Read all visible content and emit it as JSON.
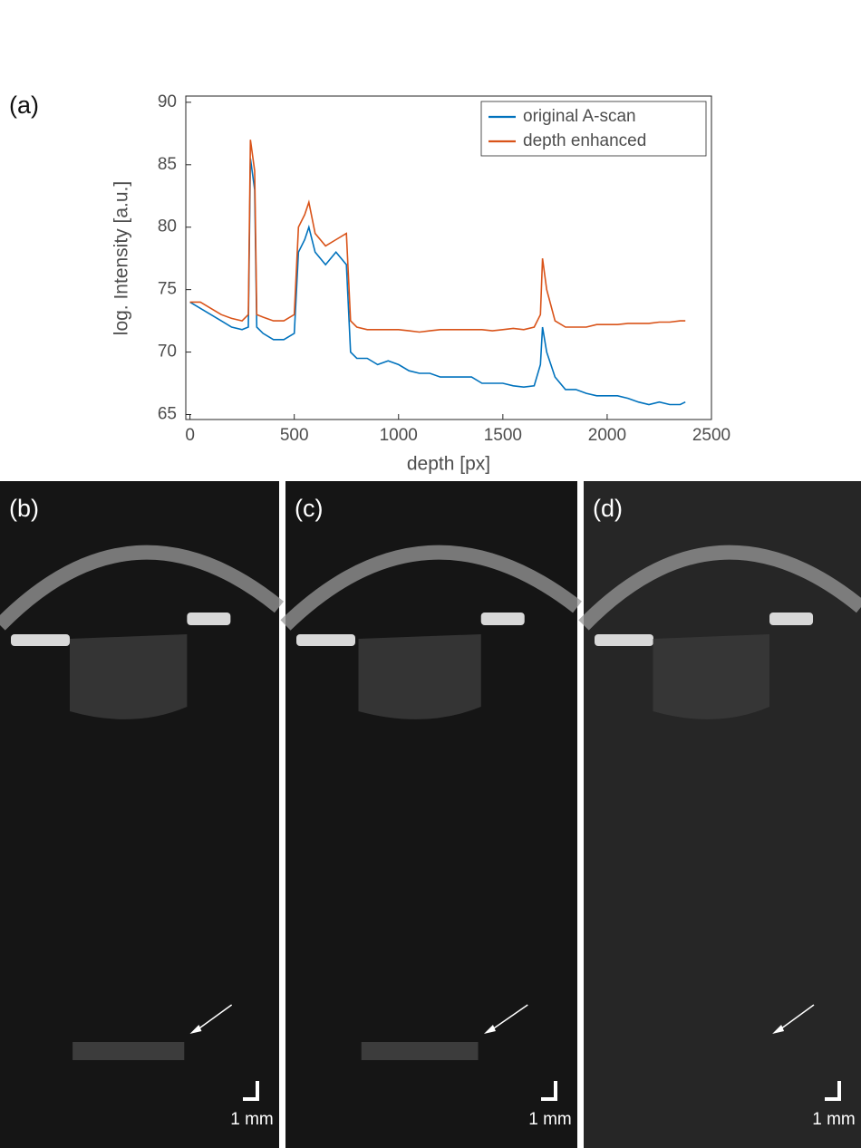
{
  "chart_data": {
    "type": "line",
    "label": "(a)",
    "xlabel": "depth [px]",
    "ylabel": "log. Intensity [a.u.]",
    "x": [
      0,
      50,
      100,
      150,
      200,
      250,
      280,
      290,
      310,
      320,
      350,
      400,
      450,
      500,
      520,
      550,
      570,
      600,
      650,
      700,
      750,
      770,
      800,
      850,
      900,
      950,
      1000,
      1050,
      1100,
      1150,
      1200,
      1250,
      1300,
      1350,
      1400,
      1450,
      1500,
      1550,
      1600,
      1650,
      1680,
      1690,
      1710,
      1750,
      1800,
      1850,
      1900,
      1950,
      2000,
      2050,
      2100,
      2150,
      2200,
      2250,
      2300,
      2350,
      2375
    ],
    "series": [
      {
        "name": "original A-scan",
        "color": "#0072bd",
        "values": [
          74,
          73.5,
          73,
          72.5,
          72,
          71.8,
          72,
          85.5,
          83,
          72,
          71.5,
          71,
          71,
          71.5,
          78,
          79,
          80,
          78,
          77,
          78,
          77,
          70,
          69.5,
          69.5,
          69,
          69.3,
          69,
          68.5,
          68.3,
          68.3,
          68,
          68,
          68,
          68,
          67.5,
          67.5,
          67.5,
          67.3,
          67.2,
          67.3,
          69,
          72,
          70,
          68,
          67,
          67,
          66.7,
          66.5,
          66.5,
          66.5,
          66.3,
          66,
          65.8,
          66,
          65.8,
          65.8,
          66
        ]
      },
      {
        "name": "depth enhanced",
        "color": "#d95319",
        "values": [
          74,
          74,
          73.5,
          73,
          72.7,
          72.5,
          73,
          87,
          84.5,
          73,
          72.8,
          72.5,
          72.5,
          73,
          80,
          81,
          82,
          79.5,
          78.5,
          79,
          79.5,
          72.5,
          72,
          71.8,
          71.8,
          71.8,
          71.8,
          71.7,
          71.6,
          71.7,
          71.8,
          71.8,
          71.8,
          71.8,
          71.8,
          71.7,
          71.8,
          71.9,
          71.8,
          72,
          73,
          77.5,
          75,
          72.5,
          72,
          72,
          72,
          72.2,
          72.2,
          72.2,
          72.3,
          72.3,
          72.3,
          72.4,
          72.4,
          72.5,
          72.5
        ]
      }
    ],
    "xlim": [
      -20,
      2500
    ],
    "xticks": [
      0,
      500,
      1000,
      1500,
      2000,
      2500
    ],
    "ylim": [
      64.6,
      90.5
    ],
    "yticks": [
      65,
      70,
      75,
      80,
      85,
      90
    ],
    "legend": "top-right"
  },
  "panels": [
    {
      "label": "(b)",
      "scale_label": "1 mm"
    },
    {
      "label": "(c)",
      "scale_label": "1 mm"
    },
    {
      "label": "(d)",
      "scale_label": "1 mm"
    }
  ]
}
